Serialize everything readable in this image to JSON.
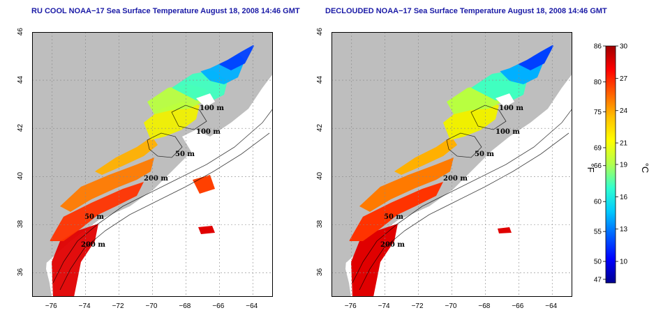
{
  "maps": [
    {
      "title": "RU COOL NOAA−17 Sea Surface Temperature August 18, 2008 14:46 GMT",
      "kind": "raw"
    },
    {
      "title": "DECLOUDED NOAA−17 Sea Surface Temperature August 18, 2008 14:46 GMT",
      "kind": "declouded"
    }
  ],
  "axes": {
    "x_ticks": [
      "−76",
      "−74",
      "−72",
      "−70",
      "−68",
      "−66",
      "−64"
    ],
    "y_ticks": [
      "46",
      "44",
      "42",
      "40",
      "38",
      "36"
    ],
    "lon_range": [
      -77.2,
      -62.8
    ],
    "lat_range": [
      35.0,
      46.0
    ],
    "grid": "dotted"
  },
  "contours": [
    "100 m",
    "100 m",
    "50 m",
    "200 m",
    "50 m",
    "200 m"
  ],
  "colorbar": {
    "fahrenheit_unit": "°F",
    "celsius_unit": "°C",
    "fahrenheit_ticks": [
      "86",
      "80",
      "75",
      "69",
      "66",
      "60",
      "55",
      "50",
      "47"
    ],
    "celsius_ticks": [
      "30",
      "27",
      "24",
      "21",
      "19",
      "16",
      "13",
      "10"
    ],
    "range_c": [
      8,
      30
    ],
    "colors": [
      "#00008f",
      "#0000ff",
      "#0060ff",
      "#00c8ff",
      "#30ffd0",
      "#b0ff50",
      "#ffff00",
      "#ffc000",
      "#ff6000",
      "#ff0000",
      "#a00000"
    ]
  },
  "colors": {
    "land": "#bebebe",
    "ocean": "#ffffff",
    "title": "#1a1aa6"
  }
}
